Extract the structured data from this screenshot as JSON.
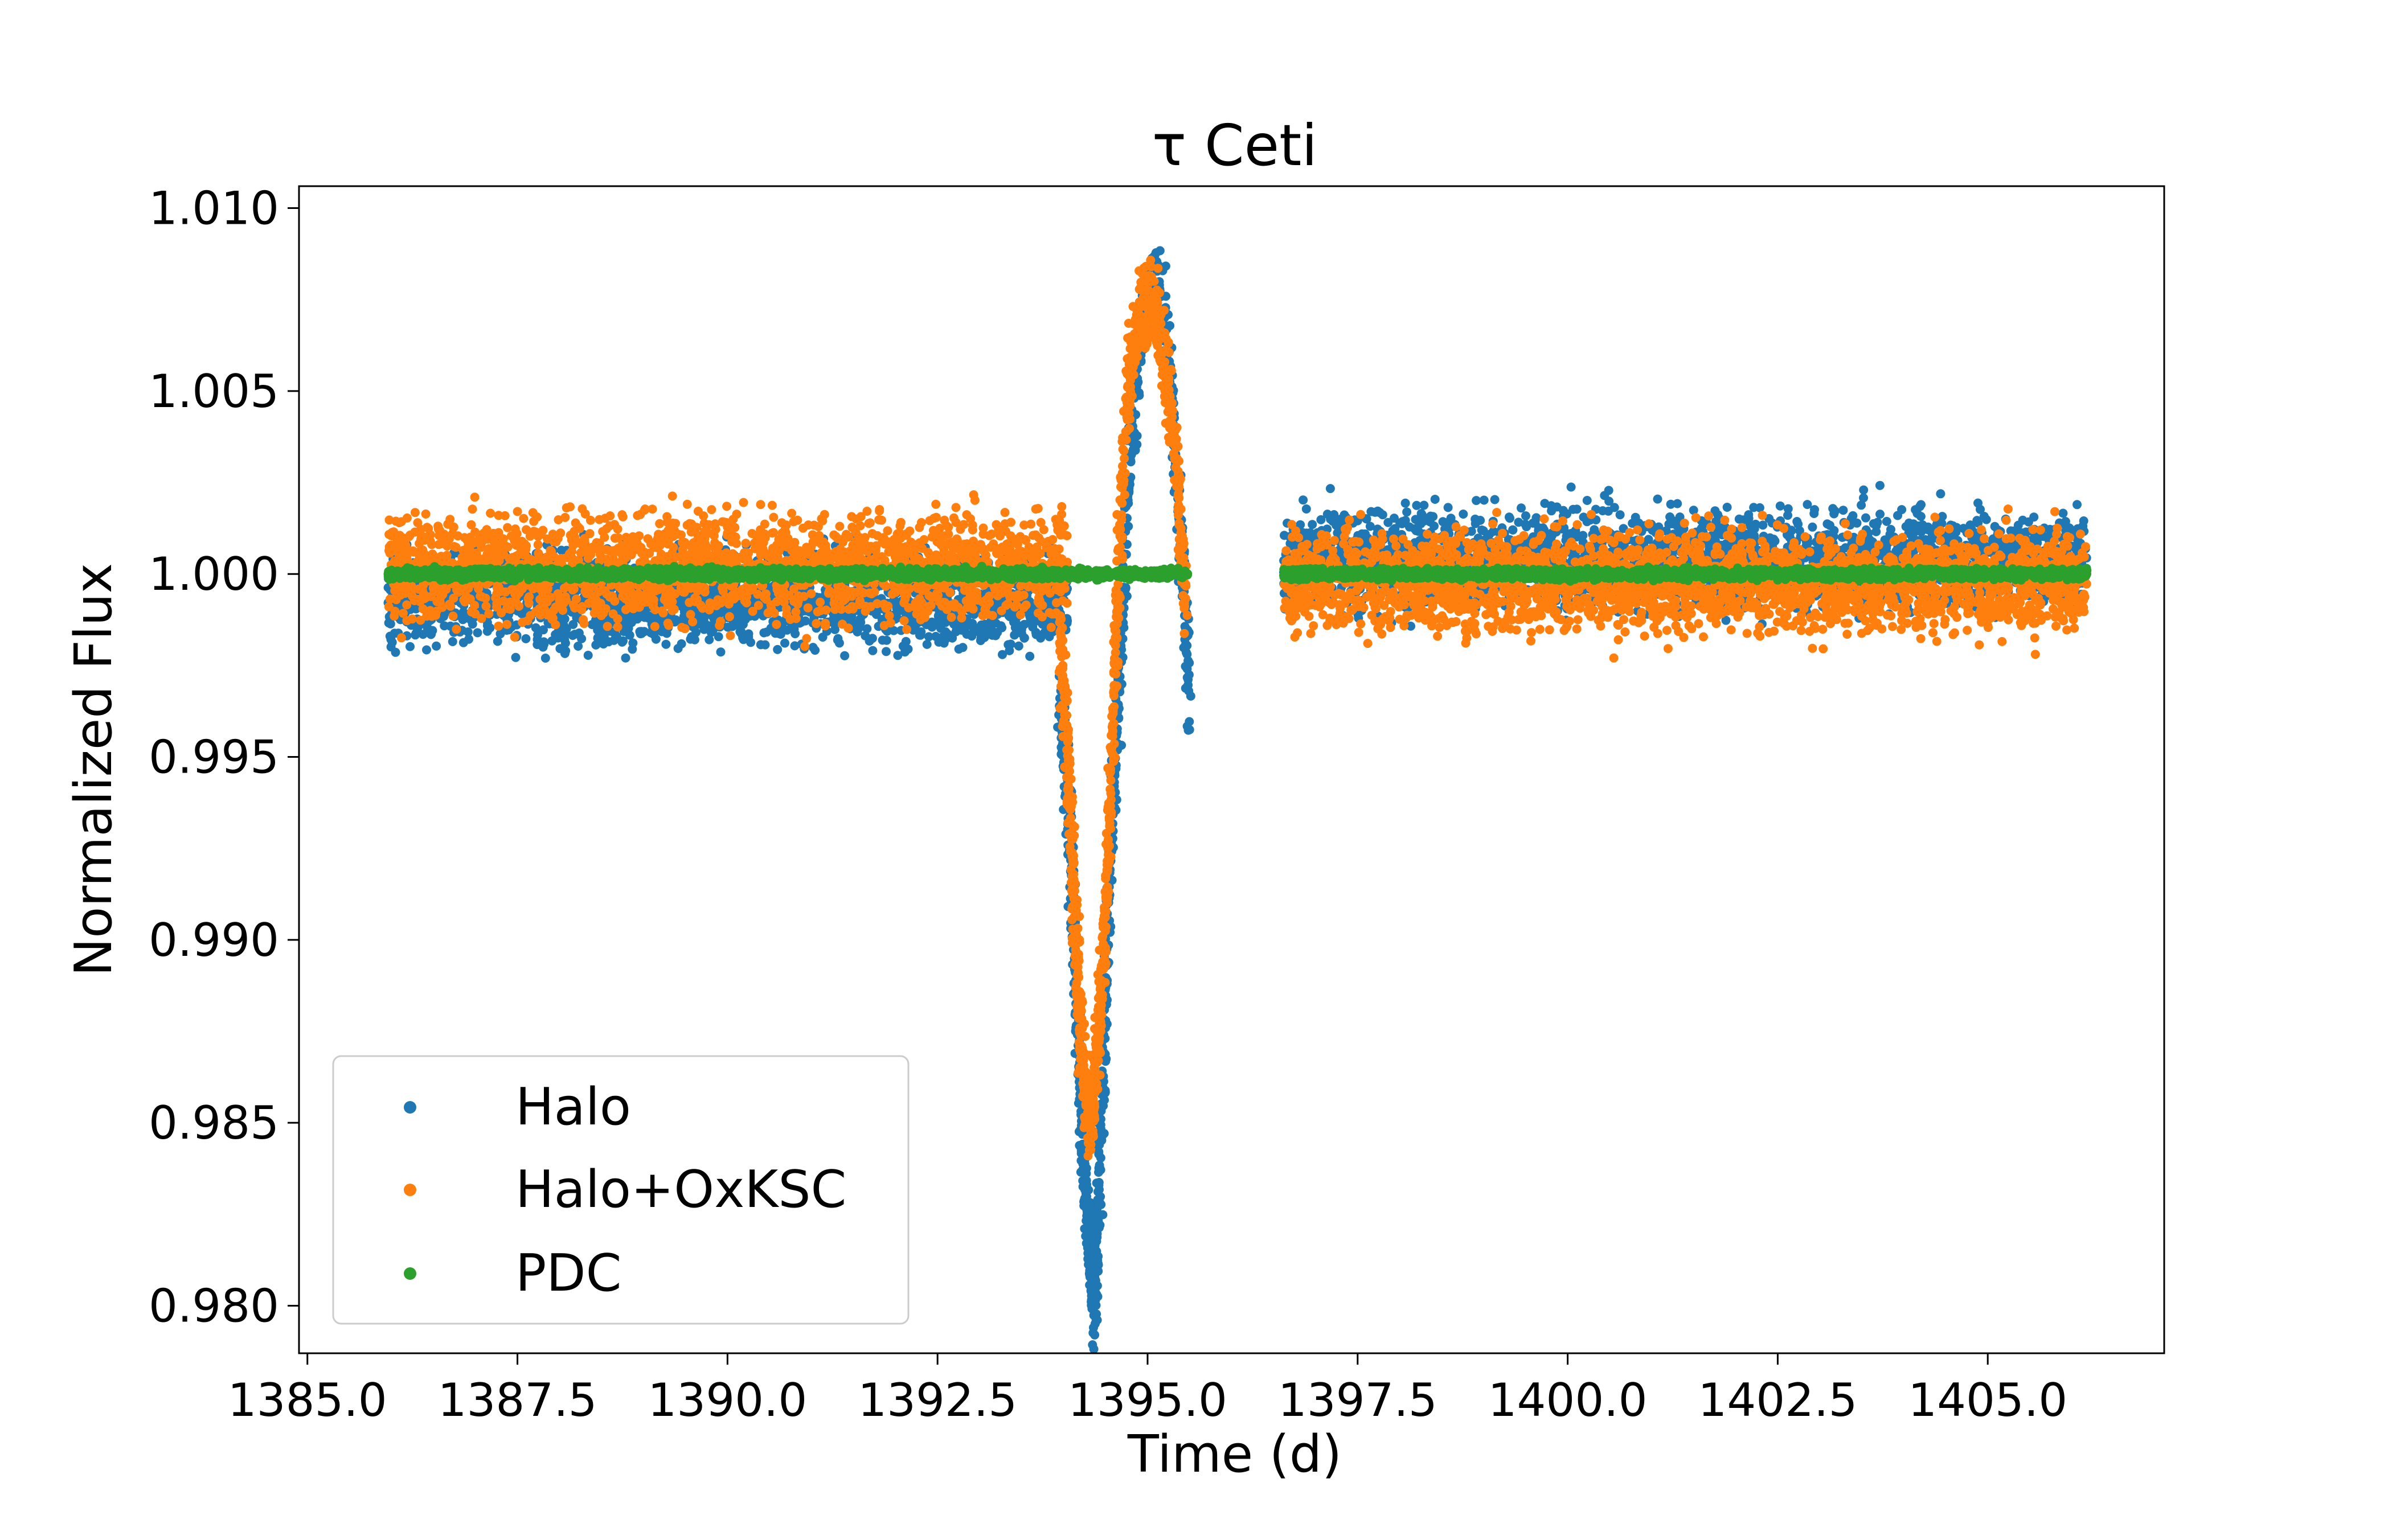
{
  "chart_data": {
    "type": "scatter",
    "title": "τ Ceti",
    "xlabel": "Time (d)",
    "ylabel": "Normalized Flux",
    "xlim": [
      1384.9,
      1407.1
    ],
    "ylim": [
      0.9787,
      1.0106
    ],
    "xticks": [
      1385.0,
      1387.5,
      1390.0,
      1392.5,
      1395.0,
      1397.5,
      1400.0,
      1402.5,
      1405.0
    ],
    "xtick_labels": [
      "1385.0",
      "1387.5",
      "1390.0",
      "1392.5",
      "1395.0",
      "1397.5",
      "1400.0",
      "1402.5",
      "1405.0"
    ],
    "yticks": [
      0.98,
      0.985,
      0.99,
      0.995,
      1.0,
      1.005,
      1.01
    ],
    "ytick_labels": [
      "0.980",
      "0.985",
      "0.990",
      "0.995",
      "1.000",
      "1.005",
      "1.010"
    ],
    "grid": false,
    "legend_position": "lower-left",
    "series": [
      {
        "name": "Halo",
        "color": "#1f77b4",
        "segments": [
          {
            "x_range": [
              1385.96,
              1394.05
            ],
            "center": 0.9993,
            "spread": 0.0022
          },
          {
            "x_range": [
              1396.62,
              1406.18
            ],
            "center": 1.0004,
            "spread": 0.0024
          }
        ],
        "dip": [
          {
            "x": 1393.95,
            "y": 0.9965
          },
          {
            "x": 1394.05,
            "y": 0.994
          },
          {
            "x": 1394.12,
            "y": 0.9905
          },
          {
            "x": 1394.18,
            "y": 0.987
          },
          {
            "x": 1394.24,
            "y": 0.984
          },
          {
            "x": 1394.3,
            "y": 0.982
          },
          {
            "x": 1394.34,
            "y": 0.981
          },
          {
            "x": 1394.37,
            "y": 0.98
          },
          {
            "x": 1394.42,
            "y": 0.983
          },
          {
            "x": 1394.48,
            "y": 0.9875
          },
          {
            "x": 1394.55,
            "y": 0.992
          },
          {
            "x": 1394.62,
            "y": 0.9955
          },
          {
            "x": 1394.7,
            "y": 0.999
          },
          {
            "x": 1394.8,
            "y": 1.004
          },
          {
            "x": 1394.95,
            "y": 1.007
          },
          {
            "x": 1395.1,
            "y": 1.008
          },
          {
            "x": 1395.25,
            "y": 1.006
          },
          {
            "x": 1395.4,
            "y": 1.001
          },
          {
            "x": 1395.5,
            "y": 0.9965
          }
        ]
      },
      {
        "name": "Halo+OxKSC",
        "color": "#ff7f0e",
        "segments": [
          {
            "x_range": [
              1385.96,
              1394.05
            ],
            "center": 1.0002,
            "spread": 0.0026
          },
          {
            "x_range": [
              1396.62,
              1406.18
            ],
            "center": 0.9998,
            "spread": 0.0024
          }
        ],
        "dip": [
          {
            "x": 1393.95,
            "y": 0.9985
          },
          {
            "x": 1394.05,
            "y": 0.995
          },
          {
            "x": 1394.12,
            "y": 0.9915
          },
          {
            "x": 1394.18,
            "y": 0.9885
          },
          {
            "x": 1394.25,
            "y": 0.986
          },
          {
            "x": 1394.32,
            "y": 0.985
          },
          {
            "x": 1394.4,
            "y": 0.987
          },
          {
            "x": 1394.48,
            "y": 0.99
          },
          {
            "x": 1394.56,
            "y": 0.994
          },
          {
            "x": 1394.64,
            "y": 0.999
          },
          {
            "x": 1394.75,
            "y": 1.005
          },
          {
            "x": 1394.9,
            "y": 1.007
          },
          {
            "x": 1395.05,
            "y": 1.0075
          },
          {
            "x": 1395.2,
            "y": 1.006
          },
          {
            "x": 1395.35,
            "y": 1.003
          },
          {
            "x": 1395.45,
            "y": 0.999
          }
        ]
      },
      {
        "name": "PDC",
        "color": "#2ca02c",
        "segments": [
          {
            "x_range": [
              1385.96,
              1395.48
            ],
            "center": 1.0,
            "spread": 0.00025
          },
          {
            "x_range": [
              1396.62,
              1406.18
            ],
            "center": 1.0,
            "spread": 0.00025
          }
        ],
        "dip": []
      }
    ]
  }
}
